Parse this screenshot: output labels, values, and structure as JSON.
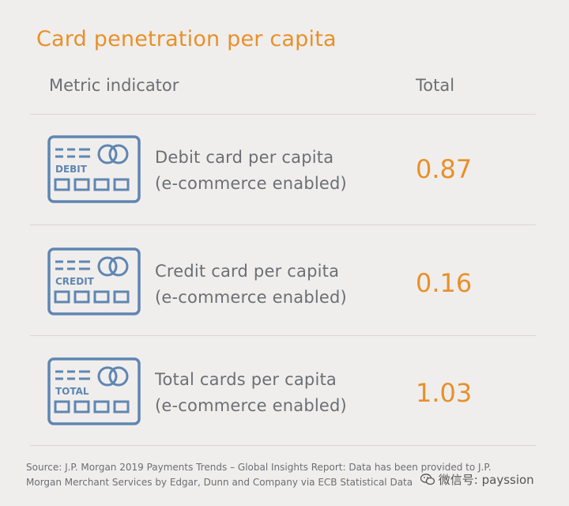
{
  "title": "Card penetration per capita",
  "header": {
    "metric": "Metric indicator",
    "total": "Total"
  },
  "rows": [
    {
      "icon_text": "DEBIT",
      "label_line1": "Debit card per capita",
      "label_line2": "(e-commerce enabled)",
      "value": "0.87"
    },
    {
      "icon_text": "CREDIT",
      "label_line1": "Credit card per capita",
      "label_line2": "(e-commerce enabled)",
      "value": "0.16"
    },
    {
      "icon_text": "TOTAL",
      "label_line1": "Total cards per capita",
      "label_line2": "(e-commerce enabled)",
      "value": "1.03"
    }
  ],
  "source": {
    "line1": "Source: J.P. Morgan 2019 Payments Trends – Global Insights Report: Data has been provided to J.P.",
    "line2": "Morgan Merchant Services by Edgar, Dunn and Company via ECB Statistical Data"
  },
  "watermark": "微信号: payssion",
  "colors": {
    "accent": "#e8902a",
    "text": "#6b6f75",
    "icon": "#5f86b2",
    "background": "#f0eeec",
    "rule": "#d8d5d2"
  },
  "icons": [
    "debit-card-icon",
    "credit-card-icon",
    "total-card-icon",
    "wechat-icon"
  ]
}
